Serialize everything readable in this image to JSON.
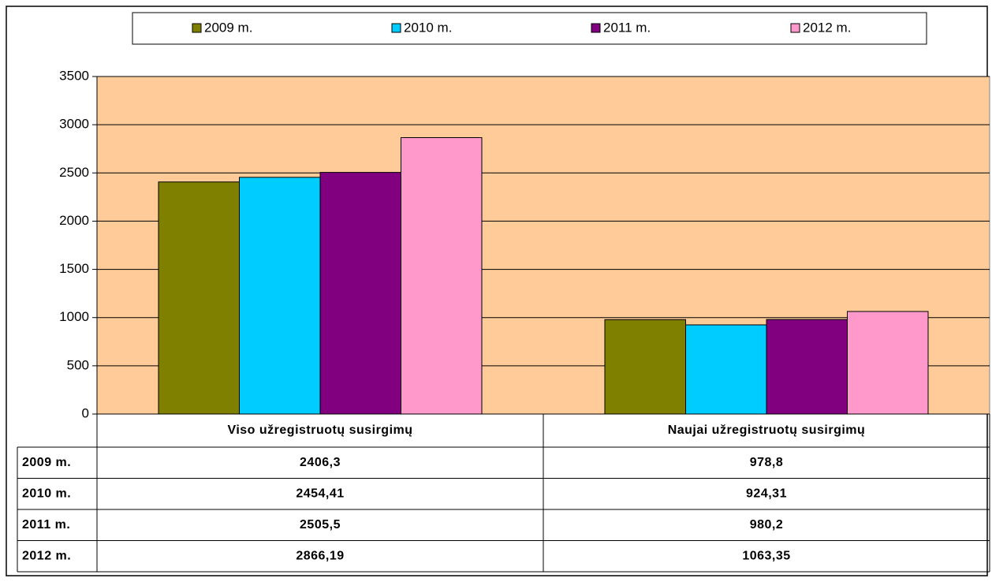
{
  "chart_data": {
    "type": "bar",
    "categories": [
      "Viso užregistruotų susirgimų",
      "Naujai užregistruotų susirgimų"
    ],
    "series": [
      {
        "name": "2009 m.",
        "color": "#808000",
        "values": [
          2406.3,
          978.8
        ],
        "value_labels": [
          "2406,3",
          "978,8"
        ]
      },
      {
        "name": "2010 m.",
        "color": "#00ccff",
        "values": [
          2454.41,
          924.31
        ],
        "value_labels": [
          "2454,41",
          "924,31"
        ]
      },
      {
        "name": "2011 m.",
        "color": "#800080",
        "values": [
          2505.5,
          980.2
        ],
        "value_labels": [
          "2505,5",
          "980,2"
        ]
      },
      {
        "name": "2012 m.",
        "color": "#ff99cc",
        "values": [
          2866.19,
          1063.35
        ],
        "value_labels": [
          "2866,19",
          "1063,35"
        ]
      }
    ],
    "ylim": [
      0,
      3500
    ],
    "yticks": [
      0,
      500,
      1000,
      1500,
      2000,
      2500,
      3000,
      3500
    ],
    "grid": true,
    "plot_background": "#ffcc99",
    "legend": "top"
  }
}
